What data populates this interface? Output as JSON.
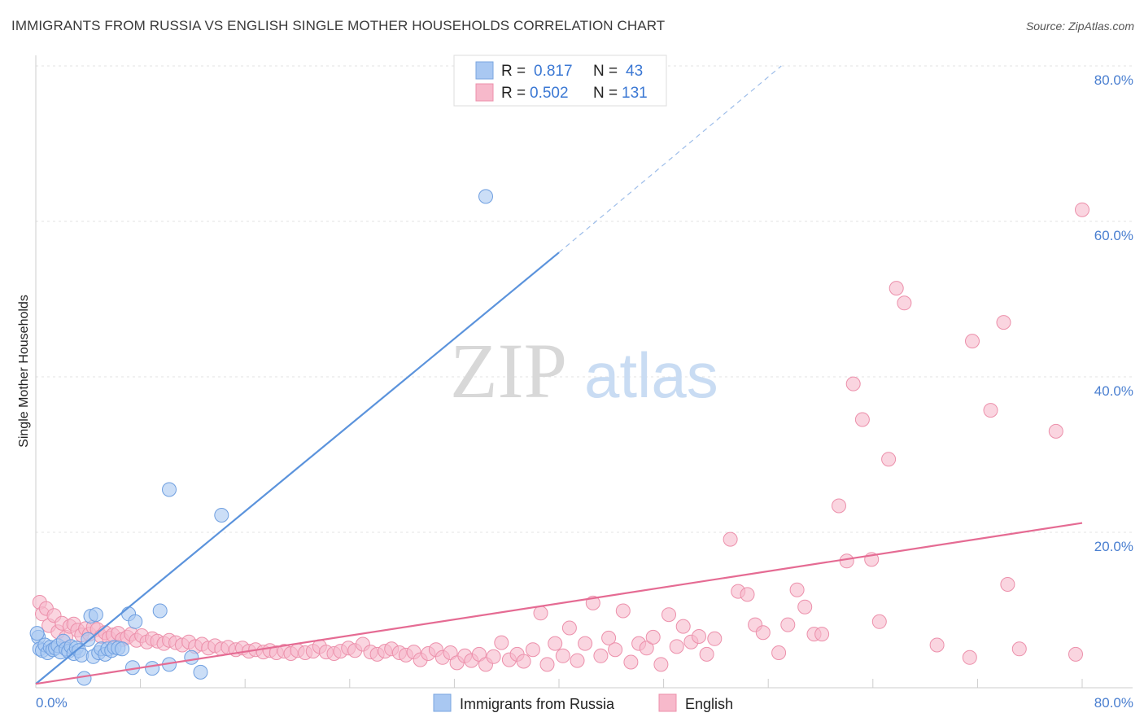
{
  "title": "IMMIGRANTS FROM RUSSIA VS ENGLISH SINGLE MOTHER HOUSEHOLDS CORRELATION CHART",
  "source": "Source: ZipAtlas.com",
  "watermark": {
    "zip": "ZIP",
    "atlas": "atlas"
  },
  "legend": {
    "r_label": "R =",
    "n_label": "N =",
    "rows": [
      {
        "r": "0.817",
        "n": "43",
        "color": "#a9c8f2"
      },
      {
        "r": "0.502",
        "n": "131",
        "color": "#f7b9cb"
      }
    ]
  },
  "chart_data": {
    "type": "scatter",
    "title": "IMMIGRANTS FROM RUSSIA VS ENGLISH SINGLE MOTHER HOUSEHOLDS CORRELATION CHART",
    "xlabel": "",
    "ylabel": "Single Mother Households",
    "xlim": [
      0,
      80
    ],
    "ylim": [
      0,
      80
    ],
    "x_ticks": [
      "0.0%",
      "80.0%"
    ],
    "y_ticks": [
      "20.0%",
      "40.0%",
      "60.0%",
      "80.0%"
    ],
    "series": [
      {
        "name": "Immigrants from Russia",
        "color": "#5b93dc",
        "fill": "#a9c8f2",
        "trend": {
          "x0": 0,
          "y0": 0.5,
          "x1": 40,
          "y1": 56,
          "dash_to_x": 57,
          "dash_to_y": 80
        },
        "points": [
          [
            0.2,
            6.5
          ],
          [
            0.3,
            5.0
          ],
          [
            0.5,
            4.8
          ],
          [
            0.7,
            5.5
          ],
          [
            0.9,
            4.5
          ],
          [
            1.1,
            5.2
          ],
          [
            1.3,
            4.9
          ],
          [
            1.5,
            5.1
          ],
          [
            1.7,
            5.4
          ],
          [
            1.9,
            4.6
          ],
          [
            2.1,
            6.0
          ],
          [
            2.3,
            5.0
          ],
          [
            2.5,
            4.7
          ],
          [
            2.7,
            5.3
          ],
          [
            2.9,
            4.4
          ],
          [
            3.1,
            5.1
          ],
          [
            3.3,
            4.8
          ],
          [
            3.5,
            4.2
          ],
          [
            3.7,
            1.2
          ],
          [
            4.0,
            6.2
          ],
          [
            4.2,
            9.2
          ],
          [
            4.4,
            4.0
          ],
          [
            4.6,
            9.4
          ],
          [
            4.8,
            4.5
          ],
          [
            5.0,
            5.0
          ],
          [
            5.3,
            4.3
          ],
          [
            5.5,
            5.0
          ],
          [
            5.8,
            4.8
          ],
          [
            6.0,
            5.2
          ],
          [
            6.3,
            5.1
          ],
          [
            6.6,
            5.0
          ],
          [
            7.1,
            9.5
          ],
          [
            7.4,
            2.6
          ],
          [
            7.6,
            8.5
          ],
          [
            8.9,
            2.5
          ],
          [
            9.5,
            9.9
          ],
          [
            10.2,
            25.5
          ],
          [
            10.2,
            3.0
          ],
          [
            11.9,
            3.9
          ],
          [
            12.6,
            2.0
          ],
          [
            14.2,
            22.2
          ],
          [
            34.4,
            63.2
          ],
          [
            0.1,
            7.0
          ]
        ]
      },
      {
        "name": "English",
        "color": "#e56b93",
        "fill": "#f7b9cb",
        "trend": {
          "x0": 0,
          "y0": 0.5,
          "x1": 80,
          "y1": 21.2
        },
        "points": [
          [
            0.3,
            11.0
          ],
          [
            0.5,
            9.5
          ],
          [
            0.8,
            10.2
          ],
          [
            1.0,
            8.0
          ],
          [
            1.4,
            9.3
          ],
          [
            1.7,
            7.2
          ],
          [
            2.0,
            8.3
          ],
          [
            2.3,
            6.5
          ],
          [
            2.6,
            7.9
          ],
          [
            2.9,
            8.2
          ],
          [
            3.2,
            7.4
          ],
          [
            3.5,
            6.8
          ],
          [
            3.8,
            7.6
          ],
          [
            4.1,
            6.9
          ],
          [
            4.4,
            7.8
          ],
          [
            4.7,
            7.5
          ],
          [
            5.0,
            6.6
          ],
          [
            5.3,
            7.1
          ],
          [
            5.6,
            6.4
          ],
          [
            5.9,
            6.8
          ],
          [
            6.3,
            7.0
          ],
          [
            6.6,
            6.2
          ],
          [
            7.0,
            6.5
          ],
          [
            7.3,
            6.9
          ],
          [
            7.7,
            6.1
          ],
          [
            8.1,
            6.7
          ],
          [
            8.5,
            5.9
          ],
          [
            8.9,
            6.3
          ],
          [
            9.3,
            6.0
          ],
          [
            9.8,
            5.7
          ],
          [
            10.2,
            6.1
          ],
          [
            10.7,
            5.8
          ],
          [
            11.2,
            5.5
          ],
          [
            11.7,
            5.9
          ],
          [
            12.2,
            5.3
          ],
          [
            12.7,
            5.6
          ],
          [
            13.2,
            5.1
          ],
          [
            13.7,
            5.4
          ],
          [
            14.2,
            5.0
          ],
          [
            14.7,
            5.2
          ],
          [
            15.3,
            4.9
          ],
          [
            15.8,
            5.1
          ],
          [
            16.3,
            4.7
          ],
          [
            16.8,
            4.9
          ],
          [
            17.4,
            4.6
          ],
          [
            17.9,
            4.8
          ],
          [
            18.4,
            4.5
          ],
          [
            19.0,
            4.7
          ],
          [
            19.5,
            4.4
          ],
          [
            20.0,
            4.8
          ],
          [
            20.6,
            4.5
          ],
          [
            21.2,
            4.7
          ],
          [
            21.7,
            5.3
          ],
          [
            22.2,
            4.6
          ],
          [
            22.8,
            4.4
          ],
          [
            23.3,
            4.7
          ],
          [
            23.9,
            5.1
          ],
          [
            24.4,
            4.8
          ],
          [
            25.0,
            5.6
          ],
          [
            25.6,
            4.6
          ],
          [
            26.1,
            4.3
          ],
          [
            26.7,
            4.7
          ],
          [
            27.2,
            5.0
          ],
          [
            27.8,
            4.5
          ],
          [
            28.3,
            4.2
          ],
          [
            28.9,
            4.6
          ],
          [
            29.4,
            3.6
          ],
          [
            30.0,
            4.4
          ],
          [
            30.6,
            4.9
          ],
          [
            31.1,
            3.9
          ],
          [
            31.7,
            4.5
          ],
          [
            32.2,
            3.2
          ],
          [
            32.8,
            4.1
          ],
          [
            33.3,
            3.5
          ],
          [
            33.9,
            4.3
          ],
          [
            34.4,
            3.0
          ],
          [
            35.0,
            4.0
          ],
          [
            35.6,
            5.8
          ],
          [
            36.2,
            3.6
          ],
          [
            36.8,
            4.3
          ],
          [
            37.3,
            3.4
          ],
          [
            38.0,
            4.9
          ],
          [
            38.6,
            9.6
          ],
          [
            39.1,
            3.0
          ],
          [
            39.7,
            5.7
          ],
          [
            40.3,
            4.1
          ],
          [
            40.8,
            7.7
          ],
          [
            41.4,
            3.5
          ],
          [
            42.0,
            5.7
          ],
          [
            42.6,
            10.9
          ],
          [
            43.2,
            4.1
          ],
          [
            43.8,
            6.4
          ],
          [
            44.3,
            4.9
          ],
          [
            44.9,
            9.9
          ],
          [
            45.5,
            3.3
          ],
          [
            46.1,
            5.7
          ],
          [
            46.7,
            5.1
          ],
          [
            47.2,
            6.5
          ],
          [
            47.8,
            3.0
          ],
          [
            48.4,
            9.4
          ],
          [
            49.0,
            5.3
          ],
          [
            49.5,
            7.9
          ],
          [
            50.1,
            5.9
          ],
          [
            50.7,
            6.6
          ],
          [
            51.3,
            4.3
          ],
          [
            51.9,
            6.3
          ],
          [
            53.1,
            19.1
          ],
          [
            53.7,
            12.4
          ],
          [
            54.4,
            12.0
          ],
          [
            55.0,
            8.1
          ],
          [
            55.6,
            7.1
          ],
          [
            56.8,
            4.5
          ],
          [
            57.5,
            8.1
          ],
          [
            58.2,
            12.6
          ],
          [
            58.8,
            10.4
          ],
          [
            59.5,
            6.9
          ],
          [
            60.1,
            6.9
          ],
          [
            61.4,
            23.4
          ],
          [
            62.0,
            16.3
          ],
          [
            62.5,
            39.1
          ],
          [
            63.2,
            34.5
          ],
          [
            63.9,
            16.5
          ],
          [
            64.5,
            8.5
          ],
          [
            65.2,
            29.4
          ],
          [
            65.8,
            51.4
          ],
          [
            66.4,
            49.5
          ],
          [
            68.9,
            5.5
          ],
          [
            71.6,
            44.6
          ],
          [
            71.4,
            3.9
          ],
          [
            73.0,
            35.7
          ],
          [
            74.0,
            47.0
          ],
          [
            74.3,
            13.3
          ],
          [
            75.2,
            5.0
          ],
          [
            78.0,
            33.0
          ],
          [
            79.5,
            4.3
          ],
          [
            80.0,
            61.5
          ]
        ]
      }
    ]
  }
}
